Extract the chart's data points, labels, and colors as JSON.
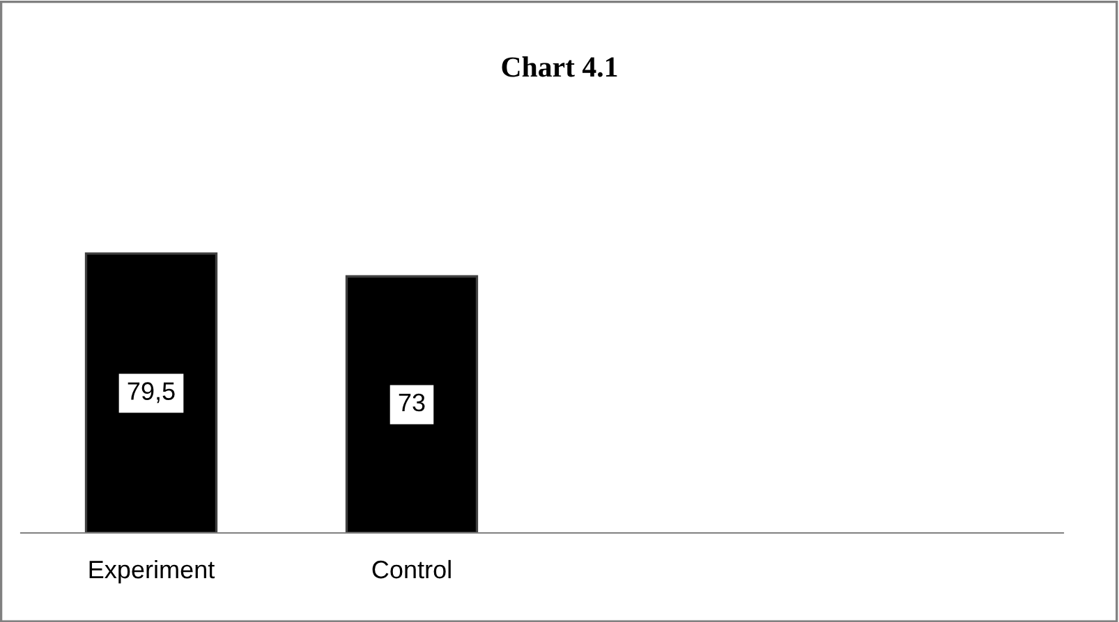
{
  "chart_data": {
    "type": "bar",
    "title": "Chart 4.1",
    "categories": [
      "Experiment",
      "Control",
      null,
      null
    ],
    "values": [
      79.5,
      73,
      null,
      null
    ],
    "value_labels": [
      "79,5",
      "73",
      null,
      null
    ],
    "color": "#000000",
    "tick_labels": "x",
    "grid": false,
    "legend": false
  }
}
